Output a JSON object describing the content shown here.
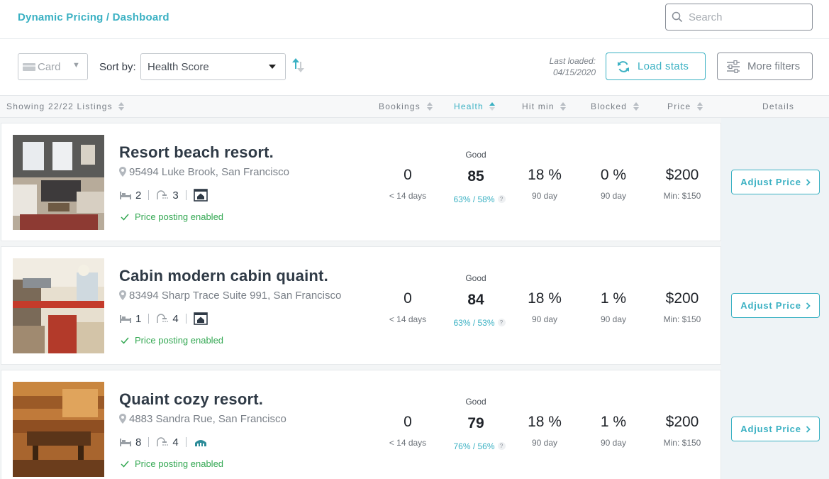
{
  "header": {
    "breadcrumb": "Dynamic Pricing / Dashboard",
    "search_placeholder": "Search"
  },
  "toolbar": {
    "view_value": "Card",
    "sort_label": "Sort by:",
    "sort_value": "Health Score",
    "last_loaded_label": "Last loaded:",
    "last_loaded_date": "04/15/2020",
    "load_stats_label": "Load stats",
    "more_filters_label": "More filters"
  },
  "columns": {
    "showing": "Showing 22/22 Listings",
    "bookings": "Bookings",
    "health": "Health",
    "hit_min": "Hit min",
    "blocked": "Blocked",
    "price": "Price",
    "details": "Details"
  },
  "listings": [
    {
      "title": "Resort beach resort.",
      "address": "95494 Luke Brook, San Francisco",
      "beds": "2",
      "baths": "3",
      "posting": "Price posting enabled",
      "bookings": "0",
      "bookings_sub": "< 14 days",
      "health_label": "Good",
      "health_score": "85",
      "health_sub": "63% / 58%",
      "hit_min": "18 %",
      "hit_min_sub": "90 day",
      "blocked": "0 %",
      "blocked_sub": "90 day",
      "price": "$200",
      "price_min": "Min: $150",
      "adjust_label": "Adjust Price"
    },
    {
      "title": "Cabin modern cabin quaint.",
      "address": "83494 Sharp Trace Suite 991, San Francisco",
      "beds": "1",
      "baths": "4",
      "posting": "Price posting enabled",
      "bookings": "0",
      "bookings_sub": "< 14 days",
      "health_label": "Good",
      "health_score": "84",
      "health_sub": "63% / 53%",
      "hit_min": "18 %",
      "hit_min_sub": "90 day",
      "blocked": "1 %",
      "blocked_sub": "90 day",
      "price": "$200",
      "price_min": "Min: $150",
      "adjust_label": "Adjust Price"
    },
    {
      "title": "Quaint cozy resort.",
      "address": "4883 Sandra Rue, San Francisco",
      "beds": "8",
      "baths": "4",
      "posting": "Price posting enabled",
      "bookings": "0",
      "bookings_sub": "< 14 days",
      "health_label": "Good",
      "health_score": "79",
      "health_sub": "76% / 56%",
      "hit_min": "18 %",
      "hit_min_sub": "90 day",
      "blocked": "1 %",
      "blocked_sub": "90 day",
      "price": "$200",
      "price_min": "Min: $150",
      "adjust_label": "Adjust Price"
    }
  ],
  "colors": {
    "accent": "#3bb1c3",
    "success": "#34a853",
    "text": "#2f3a46"
  }
}
